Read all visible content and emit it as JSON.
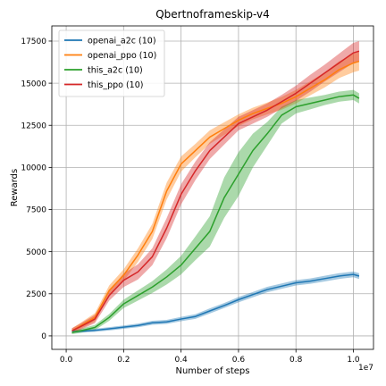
{
  "chart_data": {
    "type": "line",
    "title": "Qbertnoframeskip-v4",
    "xlabel": "Number of steps",
    "ylabel": "Rewards",
    "x_offset_text": "1e7",
    "xlim": [
      -0.05,
      1.07
    ],
    "ylim": [
      -800,
      18400
    ],
    "x_ticks": [
      0.0,
      0.2,
      0.4,
      0.6,
      0.8,
      1.0
    ],
    "x_tick_labels": [
      "0.0",
      "0.2",
      "0.4",
      "0.6",
      "0.8",
      "1.0"
    ],
    "y_ticks": [
      0,
      2500,
      5000,
      7500,
      10000,
      12500,
      15000,
      17500
    ],
    "y_tick_labels": [
      "0",
      "2500",
      "5000",
      "7500",
      "10000",
      "12500",
      "15000",
      "17500"
    ],
    "grid": true,
    "legend_position": "top-left",
    "series": [
      {
        "name": "openai_a2c (10)",
        "color": "#1f77b4",
        "x": [
          0.02,
          0.1,
          0.15,
          0.2,
          0.25,
          0.3,
          0.35,
          0.4,
          0.45,
          0.5,
          0.55,
          0.6,
          0.65,
          0.7,
          0.75,
          0.8,
          0.85,
          0.9,
          0.95,
          1.0,
          1.02
        ],
        "y": [
          250,
          330,
          420,
          520,
          620,
          780,
          830,
          1000,
          1150,
          1480,
          1800,
          2150,
          2450,
          2750,
          2950,
          3150,
          3250,
          3400,
          3550,
          3650,
          3550
        ],
        "band": [
          80,
          90,
          100,
          100,
          110,
          120,
          120,
          130,
          140,
          150,
          150,
          160,
          160,
          160,
          160,
          160,
          160,
          170,
          170,
          170,
          170
        ]
      },
      {
        "name": "openai_ppo (10)",
        "color": "#ff7f0e",
        "x": [
          0.02,
          0.05,
          0.1,
          0.15,
          0.2,
          0.25,
          0.3,
          0.35,
          0.4,
          0.45,
          0.5,
          0.55,
          0.6,
          0.65,
          0.7,
          0.75,
          0.8,
          0.85,
          0.9,
          0.95,
          1.0,
          1.02
        ],
        "y": [
          300,
          600,
          1100,
          2700,
          3600,
          4800,
          6200,
          8600,
          10200,
          11000,
          11800,
          12300,
          12800,
          13200,
          13500,
          13800,
          14200,
          14700,
          15200,
          15800,
          16200,
          16300
        ],
        "band": [
          150,
          180,
          250,
          300,
          350,
          400,
          450,
          500,
          450,
          400,
          400,
          380,
          350,
          350,
          350,
          380,
          400,
          420,
          450,
          500,
          550,
          550
        ]
      },
      {
        "name": "this_a2c (10)",
        "color": "#2ca02c",
        "x": [
          0.02,
          0.05,
          0.1,
          0.15,
          0.2,
          0.25,
          0.3,
          0.35,
          0.4,
          0.45,
          0.5,
          0.55,
          0.6,
          0.65,
          0.7,
          0.75,
          0.8,
          0.85,
          0.9,
          0.95,
          1.0,
          1.02
        ],
        "y": [
          200,
          300,
          500,
          1100,
          1900,
          2400,
          2900,
          3500,
          4200,
          5200,
          6200,
          8200,
          9600,
          11000,
          12000,
          13100,
          13600,
          13800,
          14000,
          14200,
          14300,
          14100
        ],
        "band": [
          100,
          120,
          150,
          200,
          250,
          300,
          350,
          450,
          550,
          700,
          900,
          1200,
          1300,
          1000,
          700,
          500,
          400,
          350,
          300,
          300,
          300,
          300
        ]
      },
      {
        "name": "this_ppo (10)",
        "color": "#d62728",
        "x": [
          0.02,
          0.05,
          0.1,
          0.15,
          0.2,
          0.25,
          0.3,
          0.35,
          0.4,
          0.45,
          0.5,
          0.55,
          0.6,
          0.65,
          0.7,
          0.75,
          0.8,
          0.85,
          0.9,
          0.95,
          1.0,
          1.02
        ],
        "y": [
          300,
          550,
          1000,
          2400,
          3300,
          3800,
          4700,
          6400,
          8400,
          9800,
          11000,
          11800,
          12600,
          13000,
          13400,
          13900,
          14400,
          15000,
          15600,
          16200,
          16800,
          16900
        ],
        "band": [
          150,
          180,
          250,
          300,
          400,
          450,
          500,
          600,
          600,
          550,
          500,
          450,
          400,
          400,
          400,
          400,
          450,
          500,
          500,
          550,
          600,
          600
        ]
      }
    ]
  }
}
